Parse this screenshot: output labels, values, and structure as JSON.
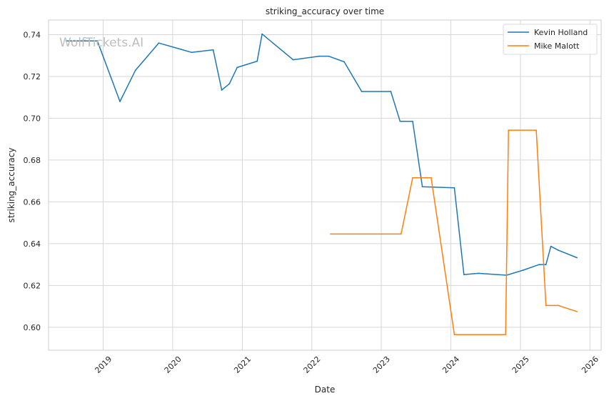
{
  "chart_data": {
    "type": "line",
    "title": "striking_accuracy over time",
    "xlabel": "Date",
    "ylabel": "striking_accuracy",
    "watermark": "WolfTickets.AI",
    "xlim": [
      "2018-03-20",
      "2026-03-01"
    ],
    "ylim": [
      0.589,
      0.747
    ],
    "x_ticks": [
      "2019-01-01",
      "2020-01-01",
      "2021-01-01",
      "2022-01-01",
      "2023-01-01",
      "2024-01-01",
      "2025-01-01",
      "2026-01-01"
    ],
    "x_tick_labels": [
      "2019",
      "2020",
      "2021",
      "2022",
      "2023",
      "2024",
      "2025",
      "2026"
    ],
    "y_ticks": [
      0.6,
      0.62,
      0.64,
      0.66,
      0.68,
      0.7,
      0.72,
      0.74
    ],
    "y_tick_labels": [
      "0.60",
      "0.62",
      "0.64",
      "0.66",
      "0.68",
      "0.70",
      "0.72",
      "0.74"
    ],
    "grid": true,
    "legend_position": "top-right",
    "series": [
      {
        "name": "Kevin Holland",
        "color": "#1f77b4",
        "points": [
          [
            "2018-06-20",
            0.737
          ],
          [
            "2018-12-01",
            0.737
          ],
          [
            "2019-03-30",
            0.708
          ],
          [
            "2019-06-20",
            0.723
          ],
          [
            "2019-10-20",
            0.736
          ],
          [
            "2020-04-10",
            0.7315
          ],
          [
            "2020-08-01",
            0.7327
          ],
          [
            "2020-09-15",
            0.7135
          ],
          [
            "2020-10-25",
            0.7165
          ],
          [
            "2020-12-05",
            0.7243
          ],
          [
            "2021-03-20",
            0.7273
          ],
          [
            "2021-04-15",
            0.7403
          ],
          [
            "2021-09-25",
            0.728
          ],
          [
            "2022-02-10",
            0.7297
          ],
          [
            "2022-03-30",
            0.7297
          ],
          [
            "2022-06-20",
            0.727
          ],
          [
            "2022-09-20",
            0.7128
          ],
          [
            "2023-02-20",
            0.7128
          ],
          [
            "2023-04-10",
            0.6985
          ],
          [
            "2023-06-15",
            0.6985
          ],
          [
            "2023-08-05",
            0.6672
          ],
          [
            "2024-01-20",
            0.6667
          ],
          [
            "2024-03-10",
            0.6252
          ],
          [
            "2024-05-25",
            0.6258
          ],
          [
            "2024-10-20",
            0.6249
          ],
          [
            "2025-01-15",
            0.6273
          ],
          [
            "2025-04-10",
            0.63
          ],
          [
            "2025-05-15",
            0.63
          ],
          [
            "2025-06-10",
            0.6387
          ],
          [
            "2025-07-20",
            0.6368
          ],
          [
            "2025-10-25",
            0.6333
          ]
        ]
      },
      {
        "name": "Mike Malott",
        "color": "#ff7f0e",
        "points": [
          [
            "2022-04-10",
            0.6446
          ],
          [
            "2023-04-15",
            0.6446
          ],
          [
            "2023-06-15",
            0.6715
          ],
          [
            "2023-09-20",
            0.6715
          ],
          [
            "2024-01-20",
            0.5965
          ],
          [
            "2024-10-15",
            0.5965
          ],
          [
            "2024-10-30",
            0.6943
          ],
          [
            "2025-03-25",
            0.6943
          ],
          [
            "2025-05-15",
            0.6104
          ],
          [
            "2025-07-20",
            0.6104
          ],
          [
            "2025-10-25",
            0.6075
          ]
        ]
      }
    ]
  }
}
